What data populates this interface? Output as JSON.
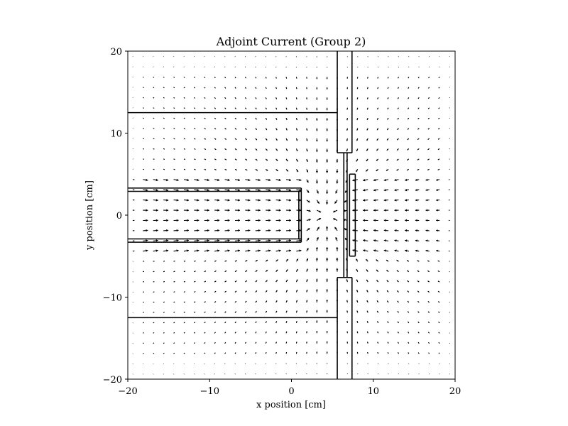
{
  "chart_data": {
    "type": "quiver",
    "title": "Adjoint Current (Group 2)",
    "xlabel": "x position [cm]",
    "ylabel": "y position [cm]",
    "xlim": [
      -20,
      20
    ],
    "ylim": [
      -20,
      20
    ],
    "xticks": [
      -20,
      -10,
      0,
      10,
      20
    ],
    "yticks": [
      -20,
      -10,
      0,
      10,
      20
    ],
    "xtick_labels": [
      "−20",
      "−10",
      "0",
      "10",
      "20"
    ],
    "ytick_labels": [
      "−20",
      "−10",
      "0",
      "10",
      "20"
    ],
    "grid": false,
    "arrow_color": "#000000",
    "vector_field": {
      "grid_step": 1.25,
      "x_range": [
        -19.4,
        19.4
      ],
      "y_range": [
        -19.4,
        19.4
      ],
      "sink": [
        4.3,
        0
      ],
      "description_units": "arrows point toward the region near x≈4–6 cm, y≈0"
    },
    "geometry_lines": [
      {
        "x": [
          -20,
          5.6
        ],
        "y": [
          12.5,
          12.5
        ]
      },
      {
        "x": [
          -20,
          5.6
        ],
        "y": [
          -12.5,
          -12.5
        ]
      },
      {
        "x": [
          -20,
          1.2
        ],
        "y": [
          3.3,
          3.3
        ]
      },
      {
        "x": [
          -20,
          1.2
        ],
        "y": [
          2.9,
          2.9
        ]
      },
      {
        "x": [
          -20,
          1.2
        ],
        "y": [
          -2.9,
          -2.9
        ]
      },
      {
        "x": [
          -20,
          1.2
        ],
        "y": [
          -3.3,
          -3.3
        ]
      },
      {
        "x": [
          1.2,
          1.2
        ],
        "y": [
          -3.3,
          3.3
        ]
      },
      {
        "x": [
          0.9,
          0.9
        ],
        "y": [
          -2.9,
          2.9
        ]
      },
      {
        "x": [
          5.6,
          5.6
        ],
        "y": [
          20,
          7.6
        ]
      },
      {
        "x": [
          5.6,
          5.6
        ],
        "y": [
          -7.6,
          -20
        ]
      },
      {
        "x": [
          7.4,
          7.4
        ],
        "y": [
          20,
          7.6
        ]
      },
      {
        "x": [
          7.4,
          7.4
        ],
        "y": [
          -7.6,
          -20
        ]
      },
      {
        "x": [
          5.6,
          7.4
        ],
        "y": [
          7.6,
          7.6
        ]
      },
      {
        "x": [
          5.6,
          7.4
        ],
        "y": [
          -7.6,
          -7.6
        ]
      },
      {
        "x": [
          6.4,
          6.4
        ],
        "y": [
          -7.6,
          7.6
        ]
      },
      {
        "x": [
          6.8,
          6.8
        ],
        "y": [
          -7.6,
          7.6
        ]
      },
      {
        "x": [
          7.1,
          7.1
        ],
        "y": [
          -5.0,
          5.0
        ]
      },
      {
        "x": [
          7.8,
          7.8
        ],
        "y": [
          -5.0,
          5.0
        ]
      },
      {
        "x": [
          7.1,
          7.8
        ],
        "y": [
          5.0,
          5.0
        ]
      },
      {
        "x": [
          7.1,
          7.8
        ],
        "y": [
          -5.0,
          -5.0
        ]
      }
    ]
  }
}
